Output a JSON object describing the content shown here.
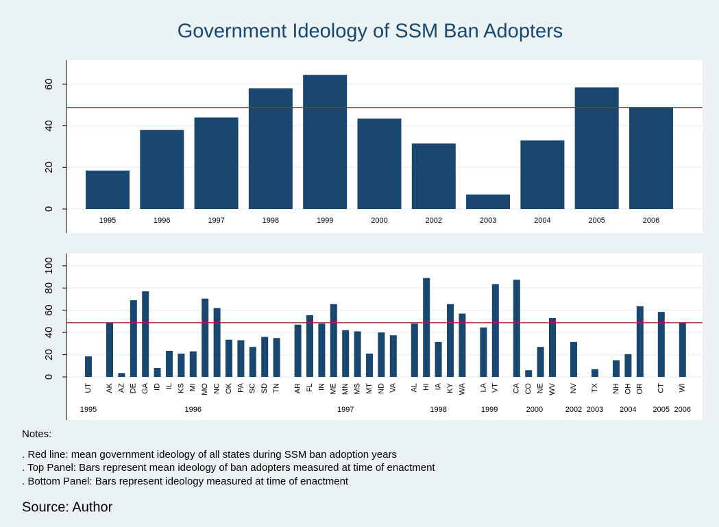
{
  "title": "Government Ideology of SSM Ban Adopters",
  "notes": {
    "heading": "Notes:",
    "lines": [
      ". Red line: mean government ideology of all states during SSM ban adoption years",
      ". Top Panel: Bars represent mean ideology of ban adopters measured at time of enactment",
      ". Bottom Panel: Bars represent ideology measured at time of enactment"
    ]
  },
  "source": "Source: Author",
  "chart_data": [
    {
      "type": "bar",
      "categories": [
        "1995",
        "1996",
        "1997",
        "1998",
        "1999",
        "2000",
        "2002",
        "2003",
        "2004",
        "2005",
        "2006"
      ],
      "values": [
        18.5,
        38,
        44,
        58,
        64.5,
        43.5,
        31.5,
        7,
        33,
        58.5,
        49
      ],
      "color": "#1a476f",
      "ylim": [
        0,
        71.5
      ],
      "yticks": [
        0,
        20,
        40,
        60
      ],
      "grid": true,
      "reference_line": 48.8,
      "reference_color": "#b5203e"
    },
    {
      "type": "grouped_bar",
      "color": "#1a476f",
      "ylim": [
        0,
        111
      ],
      "yticks": [
        0,
        20,
        40,
        60,
        80,
        100
      ],
      "grid": true,
      "reference_line": 48.8,
      "reference_color": "#b5203e",
      "groups": [
        {
          "name": "1995",
          "categories": [
            "UT"
          ],
          "values": [
            18.5
          ]
        },
        {
          "name": "1996",
          "categories": [
            "AK",
            "AZ",
            "DE",
            "GA",
            "ID",
            "IL",
            "KS",
            "MI",
            "MO",
            "NC",
            "OK",
            "PA",
            "SC",
            "SD",
            "TN"
          ],
          "values": [
            49,
            3.5,
            69,
            77,
            8,
            23.5,
            21,
            23,
            70.5,
            62,
            33.5,
            33,
            27,
            36,
            35
          ]
        },
        {
          "name": "1997",
          "categories": [
            "AR",
            "FL",
            "IN",
            "ME",
            "MN",
            "MS",
            "MT",
            "ND",
            "VA"
          ],
          "values": [
            47,
            55.5,
            48,
            65.5,
            42,
            41,
            21,
            40,
            37.5
          ]
        },
        {
          "name": "1998",
          "categories": [
            "AL",
            "HI",
            "IA",
            "KY",
            "WA"
          ],
          "values": [
            48,
            89,
            31.5,
            65.5,
            57
          ]
        },
        {
          "name": "1999",
          "categories": [
            "LA",
            "VT"
          ],
          "values": [
            44.5,
            83.5
          ]
        },
        {
          "name": "2000",
          "categories": [
            "CA",
            "CO",
            "NE",
            "WV"
          ],
          "values": [
            87.5,
            6,
            27,
            53
          ]
        },
        {
          "name": "2002",
          "categories": [
            "NV"
          ],
          "values": [
            31.5
          ]
        },
        {
          "name": "2003",
          "categories": [
            "TX"
          ],
          "values": [
            7
          ]
        },
        {
          "name": "2004",
          "categories": [
            "NH",
            "OH",
            "OR"
          ],
          "values": [
            15,
            20.5,
            63.5
          ]
        },
        {
          "name": "2005",
          "categories": [
            "CT"
          ],
          "values": [
            58.5
          ]
        },
        {
          "name": "2006",
          "categories": [
            "WI"
          ],
          "values": [
            49
          ]
        }
      ]
    }
  ]
}
